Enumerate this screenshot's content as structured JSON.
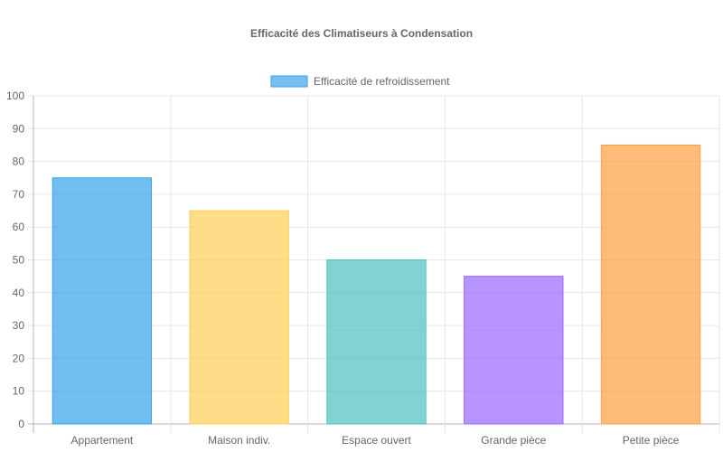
{
  "chart_data": {
    "type": "bar",
    "title": "Efficacité des Climatiseurs à Condensation",
    "categories": [
      "Appartement",
      "Maison indiv.",
      "Espace ouvert",
      "Grande pièce",
      "Petite pièce"
    ],
    "series": [
      {
        "name": "Efficacité de refroidissement",
        "values": [
          75,
          65,
          50,
          45,
          85
        ],
        "colors": [
          "#36A2EB",
          "#FFCE56",
          "#4BC0C0",
          "#9966FF",
          "#FF9F40"
        ],
        "legend_fill": "#7ABEF0",
        "legend_stroke": "#36A2EB"
      }
    ],
    "ylim": [
      0,
      100
    ],
    "y_step": 10,
    "grid": true,
    "legend_position": "top"
  }
}
